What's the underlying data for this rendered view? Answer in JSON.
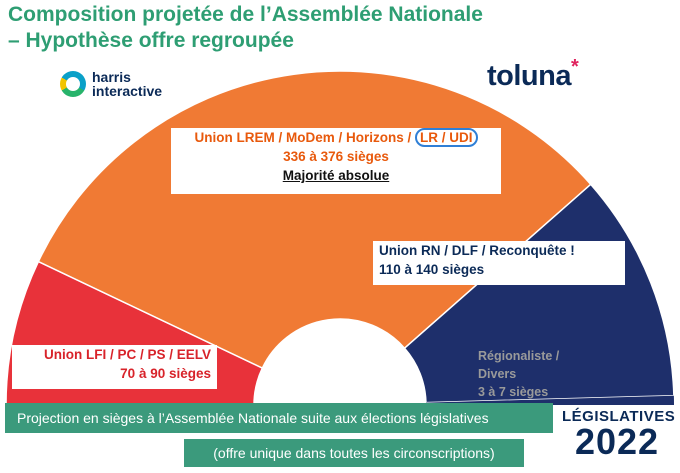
{
  "title_line1": "Composition projetée de l’Assemblée Nationale",
  "title_line2": "– Hypothèse offre regroupée",
  "logo_left_line1": "harris",
  "logo_left_line2": "interactive",
  "logo_right": "toluna",
  "logo_right_star": "*",
  "labels": {
    "center_name": "Union LREM / MoDem / Horizons / ",
    "center_highlight": "LR / UDI",
    "center_seats": "336 à 376 sièges",
    "center_majority": "Majorité absolue",
    "right_name": "Union RN / DLF / Reconquête !",
    "right_seats": "110 à 140 sièges",
    "left_name": "Union LFI / PC / PS / EELV",
    "left_seats": "70 à 90 sièges",
    "small_name": "Régionaliste / Divers",
    "small_seats": "3 à 7 sièges"
  },
  "footer_line1": "Projection en sièges à l’Assemblée Nationale suite aux élections législatives",
  "footer_line2": "(offre unique dans toutes les circonscriptions)",
  "logo_legislatives": "LÉGISLATIVES",
  "logo_year": "2022",
  "chart_data": {
    "type": "pie",
    "subtype": "hemicycle",
    "total_seats": 577,
    "segments": [
      {
        "name": "Union LFI / PC / PS / EELV",
        "min": 70,
        "max": 90,
        "value": 80,
        "color": "#e8323a"
      },
      {
        "name": "Union LREM / MoDem / Horizons / LR / UDI",
        "min": 336,
        "max": 376,
        "value": 356,
        "color": "#f07a34"
      },
      {
        "name": "Union RN / DLF / Reconquête !",
        "min": 110,
        "max": 140,
        "value": 125,
        "color": "#1e2f6b"
      },
      {
        "name": "Régionaliste / Divers",
        "min": 3,
        "max": 7,
        "value": 5,
        "color": "#1e2f6b"
      }
    ]
  }
}
